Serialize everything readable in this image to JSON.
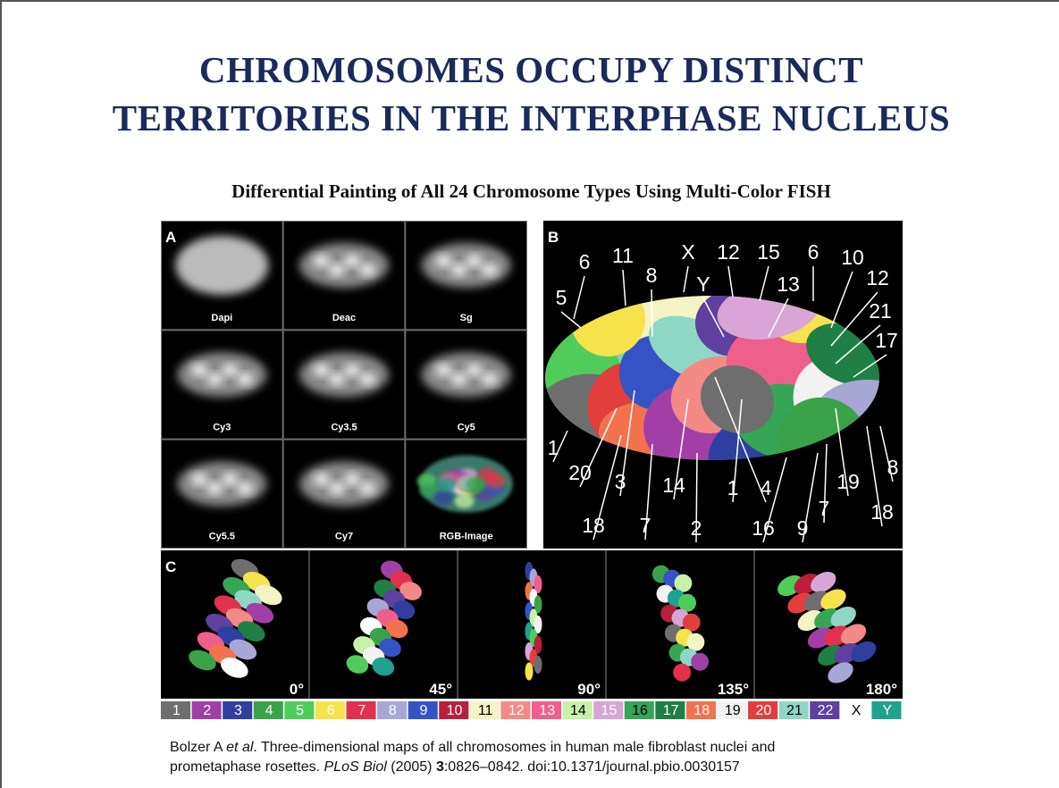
{
  "header": {
    "title_lines": [
      "CHROMOSOMES OCCUPY DISTINCT",
      "TERRITORIES IN THE INTERPHASE NUCLEUS"
    ],
    "subtitle": "Differential Painting of All 24 Chromosome Types Using Multi-Color FISH"
  },
  "figure": {
    "panel_a": {
      "label": "A",
      "channels": [
        "Dapi",
        "Deac",
        "Sg",
        "Cy3",
        "Cy3.5",
        "Cy5",
        "Cy5.5",
        "Cy7",
        "RGB-Image"
      ]
    },
    "panel_b": {
      "label": "B",
      "chromosome_labels": [
        "6",
        "11",
        "X",
        "12",
        "15",
        "6",
        "10",
        "8",
        "Y",
        "13",
        "12",
        "5",
        "21",
        "17",
        "1",
        "20",
        "3",
        "14",
        "1",
        "4",
        "19",
        "8",
        "7",
        "18",
        "18",
        "7",
        "2",
        "16",
        "9"
      ]
    },
    "panel_c": {
      "label": "C",
      "angles": [
        "0°",
        "45°",
        "90°",
        "135°",
        "180°"
      ]
    },
    "legend": [
      {
        "label": "1",
        "color": "#6e6e6e",
        "text_color": "#ffffff"
      },
      {
        "label": "2",
        "color": "#a23fa6",
        "text_color": "#ffffff"
      },
      {
        "label": "3",
        "color": "#2f3f9f",
        "text_color": "#ffffff"
      },
      {
        "label": "4",
        "color": "#3aa34a",
        "text_color": "#ffffff"
      },
      {
        "label": "5",
        "color": "#4fcc5a",
        "text_color": "#ffffff"
      },
      {
        "label": "6",
        "color": "#f6e24a",
        "text_color": "#ffffff"
      },
      {
        "label": "7",
        "color": "#e2304f",
        "text_color": "#ffffff"
      },
      {
        "label": "8",
        "color": "#a7a7d6",
        "text_color": "#ffffff"
      },
      {
        "label": "9",
        "color": "#3553c4",
        "text_color": "#ffffff"
      },
      {
        "label": "10",
        "color": "#b81f3d",
        "text_color": "#ffffff"
      },
      {
        "label": "11",
        "color": "#f4f3c4",
        "text_color": "#000000"
      },
      {
        "label": "12",
        "color": "#f38a86",
        "text_color": "#ffffff"
      },
      {
        "label": "13",
        "color": "#ef5f8c",
        "text_color": "#ffffff"
      },
      {
        "label": "14",
        "color": "#c6f1a6",
        "text_color": "#000000"
      },
      {
        "label": "15",
        "color": "#d8a5d6",
        "text_color": "#ffffff"
      },
      {
        "label": "16",
        "color": "#34a656",
        "text_color": "#000000"
      },
      {
        "label": "17",
        "color": "#1f7f45",
        "text_color": "#ffffff"
      },
      {
        "label": "18",
        "color": "#f2714f",
        "text_color": "#ffffff"
      },
      {
        "label": "19",
        "color": "#f2f2f2",
        "text_color": "#000000"
      },
      {
        "label": "20",
        "color": "#e23e3e",
        "text_color": "#ffffff"
      },
      {
        "label": "21",
        "color": "#8fd7c5",
        "text_color": "#000000"
      },
      {
        "label": "22",
        "color": "#5f3f9f",
        "text_color": "#ffffff"
      },
      {
        "label": "X",
        "color": "#ffffff",
        "text_color": "#000000"
      },
      {
        "label": "Y",
        "color": "#1fa28f",
        "text_color": "#ffffff"
      }
    ]
  },
  "citation": {
    "line1": [
      {
        "text": "Bolzer A ",
        "style": "normal"
      },
      {
        "text": "et al",
        "style": "italic"
      },
      {
        "text": ". Three-dimensional maps of all chromosomes in human male fibroblast nuclei and",
        "style": "normal"
      }
    ],
    "line2": [
      {
        "text": "prometaphase rosettes. ",
        "style": "normal"
      },
      {
        "text": "PLoS Biol",
        "style": "italic"
      },
      {
        "text": " (2005) ",
        "style": "normal"
      },
      {
        "text": "3",
        "style": "bold"
      },
      {
        "text": ":0826–0842. doi:10.1371/journal.pbio.0030157",
        "style": "normal"
      }
    ]
  }
}
